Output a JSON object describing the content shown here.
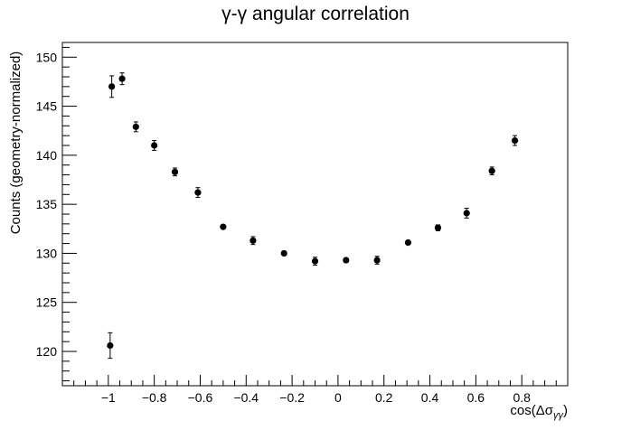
{
  "chart_data": {
    "type": "scatter",
    "title": "γ-γ angular correlation",
    "xlabel_main": "cos(Δσ",
    "xlabel_sub": "γγ",
    "xlabel_close": ")",
    "ylabel": "Counts (geometry-normalized)",
    "xlim": [
      -1.2,
      1.0
    ],
    "ylim": [
      116.5,
      151.5
    ],
    "x_ticks": [
      -1,
      -0.8,
      -0.6,
      -0.4,
      -0.2,
      0,
      0.2,
      0.4,
      0.6,
      0.8
    ],
    "x_tick_labels": [
      "−1",
      "−0.8",
      "−0.6",
      "−0.4",
      "−0.2",
      "0",
      "0.2",
      "0.4",
      "0.6",
      "0.8"
    ],
    "y_ticks": [
      120,
      125,
      130,
      135,
      140,
      145,
      150
    ],
    "y_tick_labels": [
      "120",
      "125",
      "130",
      "135",
      "140",
      "145",
      "150"
    ],
    "grid": false,
    "marker_color": "#000000",
    "points": [
      {
        "x": -0.992,
        "y": 120.6,
        "err": 1.3
      },
      {
        "x": -0.985,
        "y": 147.0,
        "err": 1.1
      },
      {
        "x": -0.94,
        "y": 147.8,
        "err": 0.6
      },
      {
        "x": -0.88,
        "y": 142.9,
        "err": 0.5
      },
      {
        "x": -0.8,
        "y": 141.0,
        "err": 0.5
      },
      {
        "x": -0.71,
        "y": 138.3,
        "err": 0.4
      },
      {
        "x": -0.61,
        "y": 136.2,
        "err": 0.5
      },
      {
        "x": -0.5,
        "y": 132.7,
        "err": 0.2
      },
      {
        "x": -0.37,
        "y": 131.3,
        "err": 0.4
      },
      {
        "x": -0.235,
        "y": 130.0,
        "err": 0.2
      },
      {
        "x": -0.1,
        "y": 129.2,
        "err": 0.4
      },
      {
        "x": 0.035,
        "y": 129.3,
        "err": 0.2
      },
      {
        "x": 0.17,
        "y": 129.3,
        "err": 0.4
      },
      {
        "x": 0.305,
        "y": 131.1,
        "err": 0.2
      },
      {
        "x": 0.435,
        "y": 132.6,
        "err": 0.3
      },
      {
        "x": 0.56,
        "y": 134.1,
        "err": 0.5
      },
      {
        "x": 0.67,
        "y": 138.4,
        "err": 0.4
      },
      {
        "x": 0.77,
        "y": 141.5,
        "err": 0.5
      }
    ]
  }
}
